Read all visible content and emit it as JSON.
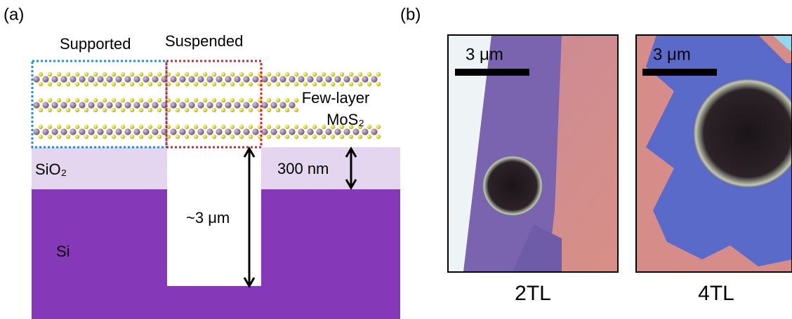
{
  "panel_a": {
    "label": "(a)",
    "supported": "Supported",
    "suspended": "Suspended",
    "material_line1": "Few-layer",
    "material_line2": "MoS₂",
    "oxide": "SiO₂",
    "oxide_thickness": "300 nm",
    "trench_depth": "~3 μm",
    "substrate": "Si"
  },
  "panel_b": {
    "label": "(b)",
    "images": [
      {
        "scale_bar": "3 μm",
        "caption": "2TL"
      },
      {
        "scale_bar": "3 μm",
        "caption": "4TL"
      }
    ]
  }
}
